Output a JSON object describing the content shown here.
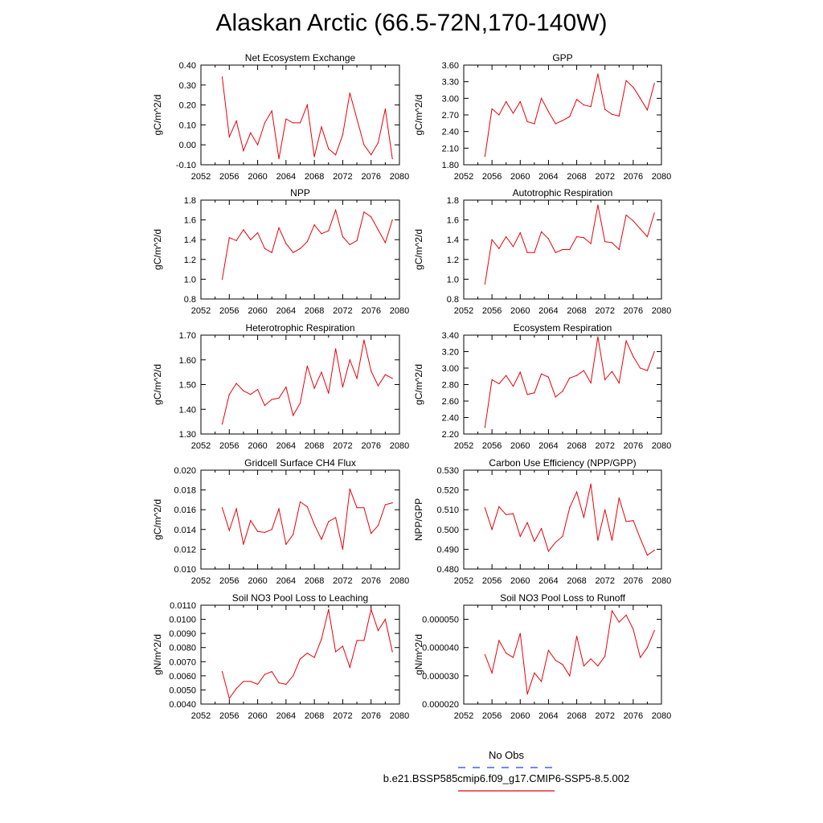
{
  "title": "Alaskan Arctic (66.5-72N,170-140W)",
  "legend": {
    "entries": [
      {
        "label": "No Obs",
        "color": "#1f3fff",
        "style": "dashed"
      },
      {
        "label": "b.e21.BSSP585cmip6.f09_g17.CMIP6-SSP5-8.5.002",
        "color": "#e8000b",
        "style": "solid"
      }
    ]
  },
  "chart_data": [
    {
      "type": "line",
      "title": "Net Ecosystem Exchange",
      "ylabel": "gC/m^2/d",
      "xlim": [
        2052,
        2080
      ],
      "ylim": [
        -0.1,
        0.4
      ],
      "xticks": [
        "2052",
        "2056",
        "2060",
        "2064",
        "2068",
        "2072",
        "2076",
        "2080"
      ],
      "yticks": [
        "-0.10",
        "0.00",
        "0.10",
        "0.20",
        "0.30",
        "0.40"
      ],
      "x": [
        2055,
        2056,
        2057,
        2058,
        2059,
        2060,
        2061,
        2062,
        2063,
        2064,
        2065,
        2066,
        2067,
        2068,
        2069,
        2070,
        2071,
        2072,
        2073,
        2074,
        2075,
        2076,
        2077,
        2078,
        2079
      ],
      "series": [
        {
          "color": "#e8000b",
          "values": [
            0.34,
            0.04,
            0.12,
            -0.03,
            0.06,
            0.0,
            0.11,
            0.17,
            -0.07,
            0.13,
            0.11,
            0.11,
            0.2,
            -0.06,
            0.09,
            -0.02,
            -0.05,
            0.05,
            0.26,
            0.13,
            0.0,
            -0.05,
            0.01,
            0.18,
            -0.07
          ]
        }
      ]
    },
    {
      "type": "line",
      "title": "GPP",
      "ylabel": "gC/m^2/d",
      "xlim": [
        2052,
        2080
      ],
      "ylim": [
        1.8,
        3.6
      ],
      "xticks": [
        "2052",
        "2056",
        "2060",
        "2064",
        "2068",
        "2072",
        "2076",
        "2080"
      ],
      "yticks": [
        "1.80",
        "2.10",
        "2.40",
        "2.70",
        "3.00",
        "3.30",
        "3.60"
      ],
      "x": [
        2055,
        2056,
        2057,
        2058,
        2059,
        2060,
        2061,
        2062,
        2063,
        2064,
        2065,
        2066,
        2067,
        2068,
        2069,
        2070,
        2071,
        2072,
        2073,
        2074,
        2075,
        2076,
        2077,
        2078,
        2079
      ],
      "series": [
        {
          "color": "#e8000b",
          "values": [
            1.95,
            2.81,
            2.7,
            2.94,
            2.73,
            2.94,
            2.58,
            2.54,
            3.0,
            2.76,
            2.54,
            2.6,
            2.67,
            2.98,
            2.88,
            2.85,
            3.44,
            2.8,
            2.71,
            2.68,
            3.32,
            3.2,
            3.0,
            2.79,
            3.27
          ]
        }
      ]
    },
    {
      "type": "line",
      "title": "NPP",
      "ylabel": "gC/m^2/d",
      "xlim": [
        2052,
        2080
      ],
      "ylim": [
        0.8,
        1.8
      ],
      "xticks": [
        "2052",
        "2056",
        "2060",
        "2064",
        "2068",
        "2072",
        "2076",
        "2080"
      ],
      "yticks": [
        "0.8",
        "1.0",
        "1.2",
        "1.4",
        "1.6",
        "1.8"
      ],
      "x": [
        2055,
        2056,
        2057,
        2058,
        2059,
        2060,
        2061,
        2062,
        2063,
        2064,
        2065,
        2066,
        2067,
        2068,
        2069,
        2070,
        2071,
        2072,
        2073,
        2074,
        2075,
        2076,
        2077,
        2078,
        2079
      ],
      "series": [
        {
          "color": "#e8000b",
          "values": [
            1.0,
            1.42,
            1.39,
            1.5,
            1.4,
            1.47,
            1.31,
            1.27,
            1.52,
            1.36,
            1.27,
            1.31,
            1.38,
            1.55,
            1.46,
            1.49,
            1.7,
            1.43,
            1.35,
            1.39,
            1.68,
            1.63,
            1.5,
            1.37,
            1.6
          ]
        }
      ]
    },
    {
      "type": "line",
      "title": "Autotrophic Respiration",
      "ylabel": "gC/m^2/d",
      "xlim": [
        2052,
        2080
      ],
      "ylim": [
        0.8,
        1.8
      ],
      "xticks": [
        "2052",
        "2056",
        "2060",
        "2064",
        "2068",
        "2072",
        "2076",
        "2080"
      ],
      "yticks": [
        "0.8",
        "1.0",
        "1.2",
        "1.4",
        "1.6",
        "1.8"
      ],
      "x": [
        2055,
        2056,
        2057,
        2058,
        2059,
        2060,
        2061,
        2062,
        2063,
        2064,
        2065,
        2066,
        2067,
        2068,
        2069,
        2070,
        2071,
        2072,
        2073,
        2074,
        2075,
        2076,
        2077,
        2078,
        2079
      ],
      "series": [
        {
          "color": "#e8000b",
          "values": [
            0.95,
            1.4,
            1.31,
            1.43,
            1.33,
            1.47,
            1.27,
            1.27,
            1.48,
            1.41,
            1.27,
            1.3,
            1.3,
            1.43,
            1.42,
            1.36,
            1.75,
            1.38,
            1.37,
            1.3,
            1.65,
            1.59,
            1.51,
            1.43,
            1.67
          ]
        }
      ]
    },
    {
      "type": "line",
      "title": "Heterotrophic Respiration",
      "ylabel": "gC/m^2/d",
      "xlim": [
        2052,
        2080
      ],
      "ylim": [
        1.3,
        1.7
      ],
      "xticks": [
        "2052",
        "2056",
        "2060",
        "2064",
        "2068",
        "2072",
        "2076",
        "2080"
      ],
      "yticks": [
        "1.30",
        "1.40",
        "1.50",
        "1.60",
        "1.70"
      ],
      "x": [
        2055,
        2056,
        2057,
        2058,
        2059,
        2060,
        2061,
        2062,
        2063,
        2064,
        2065,
        2066,
        2067,
        2068,
        2069,
        2070,
        2071,
        2072,
        2073,
        2074,
        2075,
        2076,
        2077,
        2078,
        2079
      ],
      "series": [
        {
          "color": "#e8000b",
          "values": [
            1.34,
            1.46,
            1.505,
            1.475,
            1.46,
            1.48,
            1.415,
            1.44,
            1.445,
            1.49,
            1.375,
            1.425,
            1.575,
            1.485,
            1.55,
            1.465,
            1.645,
            1.49,
            1.6,
            1.525,
            1.68,
            1.555,
            1.495,
            1.54,
            1.525
          ]
        }
      ]
    },
    {
      "type": "line",
      "title": "Ecosystem Respiration",
      "ylabel": "gC/m^2/d",
      "xlim": [
        2052,
        2080
      ],
      "ylim": [
        2.2,
        3.4
      ],
      "xticks": [
        "2052",
        "2056",
        "2060",
        "2064",
        "2068",
        "2072",
        "2076",
        "2080"
      ],
      "yticks": [
        "2.20",
        "2.40",
        "2.60",
        "2.80",
        "3.00",
        "3.20",
        "3.40"
      ],
      "x": [
        2055,
        2056,
        2057,
        2058,
        2059,
        2060,
        2061,
        2062,
        2063,
        2064,
        2065,
        2066,
        2067,
        2068,
        2069,
        2070,
        2071,
        2072,
        2073,
        2074,
        2075,
        2076,
        2077,
        2078,
        2079
      ],
      "series": [
        {
          "color": "#e8000b",
          "values": [
            2.28,
            2.86,
            2.81,
            2.91,
            2.78,
            2.95,
            2.68,
            2.7,
            2.93,
            2.89,
            2.65,
            2.72,
            2.88,
            2.91,
            2.97,
            2.82,
            3.38,
            2.86,
            2.96,
            2.82,
            3.33,
            3.14,
            3.0,
            2.97,
            3.2
          ]
        }
      ]
    },
    {
      "type": "line",
      "title": "Gridcell Surface CH4 Flux",
      "ylabel": "gC/m^2/d",
      "xlim": [
        2052,
        2080
      ],
      "ylim": [
        0.01,
        0.02
      ],
      "xticks": [
        "2052",
        "2056",
        "2060",
        "2064",
        "2068",
        "2072",
        "2076",
        "2080"
      ],
      "yticks": [
        "0.010",
        "0.012",
        "0.014",
        "0.016",
        "0.018",
        "0.020"
      ],
      "x": [
        2055,
        2056,
        2057,
        2058,
        2059,
        2060,
        2061,
        2062,
        2063,
        2064,
        2065,
        2066,
        2067,
        2068,
        2069,
        2070,
        2071,
        2072,
        2073,
        2074,
        2075,
        2076,
        2077,
        2078,
        2079
      ],
      "series": [
        {
          "color": "#e8000b",
          "values": [
            0.0162,
            0.0139,
            0.0161,
            0.0125,
            0.0149,
            0.0138,
            0.0137,
            0.014,
            0.0161,
            0.0125,
            0.0135,
            0.0168,
            0.0163,
            0.0145,
            0.013,
            0.0148,
            0.0152,
            0.012,
            0.0181,
            0.0162,
            0.0162,
            0.0136,
            0.0144,
            0.0165,
            0.0167
          ]
        }
      ]
    },
    {
      "type": "line",
      "title": "Carbon Use Efficiency (NPP/GPP)",
      "ylabel": "NPP/GPP",
      "xlim": [
        2052,
        2080
      ],
      "ylim": [
        0.48,
        0.53
      ],
      "xticks": [
        "2052",
        "2056",
        "2060",
        "2064",
        "2068",
        "2072",
        "2076",
        "2080"
      ],
      "yticks": [
        "0.480",
        "0.490",
        "0.500",
        "0.510",
        "0.520",
        "0.530"
      ],
      "x": [
        2055,
        2056,
        2057,
        2058,
        2059,
        2060,
        2061,
        2062,
        2063,
        2064,
        2065,
        2066,
        2067,
        2068,
        2069,
        2070,
        2071,
        2072,
        2073,
        2074,
        2075,
        2076,
        2077,
        2078,
        2079
      ],
      "series": [
        {
          "color": "#e8000b",
          "values": [
            0.511,
            0.5,
            0.5115,
            0.5075,
            0.508,
            0.4965,
            0.5035,
            0.494,
            0.5005,
            0.489,
            0.4935,
            0.4965,
            0.511,
            0.519,
            0.506,
            0.523,
            0.4945,
            0.51,
            0.4945,
            0.516,
            0.504,
            0.5045,
            0.4955,
            0.487,
            0.4895
          ]
        }
      ]
    },
    {
      "type": "line",
      "title": "Soil NO3 Pool Loss to Leaching",
      "ylabel": "gN/m^2/d",
      "xlim": [
        2052,
        2080
      ],
      "ylim": [
        0.004,
        0.011
      ],
      "xticks": [
        "2052",
        "2056",
        "2060",
        "2064",
        "2068",
        "2072",
        "2076",
        "2080"
      ],
      "yticks": [
        "0.0040",
        "0.0050",
        "0.0060",
        "0.0070",
        "0.0080",
        "0.0090",
        "0.0100",
        "0.0110"
      ],
      "x": [
        2055,
        2056,
        2057,
        2058,
        2059,
        2060,
        2061,
        2062,
        2063,
        2064,
        2065,
        2066,
        2067,
        2068,
        2069,
        2070,
        2071,
        2072,
        2073,
        2074,
        2075,
        2076,
        2077,
        2078,
        2079
      ],
      "series": [
        {
          "color": "#e8000b",
          "values": [
            0.0063,
            0.0044,
            0.0051,
            0.0056,
            0.0056,
            0.0054,
            0.0061,
            0.0063,
            0.0055,
            0.0054,
            0.006,
            0.0072,
            0.0076,
            0.0073,
            0.0086,
            0.0107,
            0.0077,
            0.0081,
            0.0066,
            0.0085,
            0.0085,
            0.0107,
            0.0092,
            0.01,
            0.0077
          ]
        }
      ]
    },
    {
      "type": "line",
      "title": "Soil NO3 Pool Loss to Runoff",
      "ylabel": "gN/m^2/d",
      "xlim": [
        2052,
        2080
      ],
      "ylim": [
        2e-05,
        5.5e-05
      ],
      "xticks": [
        "2052",
        "2056",
        "2060",
        "2064",
        "2068",
        "2072",
        "2076",
        "2080"
      ],
      "yticks": [
        "0.000020",
        "0.000030",
        "0.000040",
        "0.000050"
      ],
      "x": [
        2055,
        2056,
        2057,
        2058,
        2059,
        2060,
        2061,
        2062,
        2063,
        2064,
        2065,
        2066,
        2067,
        2068,
        2069,
        2070,
        2071,
        2072,
        2073,
        2074,
        2075,
        2076,
        2077,
        2078,
        2079
      ],
      "series": [
        {
          "color": "#e8000b",
          "values": [
            3.75e-05,
            3.1e-05,
            4.25e-05,
            3.8e-05,
            3.65e-05,
            4.5e-05,
            2.35e-05,
            3.1e-05,
            2.8e-05,
            3.9e-05,
            3.55e-05,
            3.4e-05,
            3e-05,
            4.4e-05,
            3.35e-05,
            3.6e-05,
            3.35e-05,
            3.7e-05,
            5.3e-05,
            4.9e-05,
            5.15e-05,
            4.65e-05,
            3.65e-05,
            4e-05,
            4.6e-05
          ]
        }
      ]
    }
  ]
}
